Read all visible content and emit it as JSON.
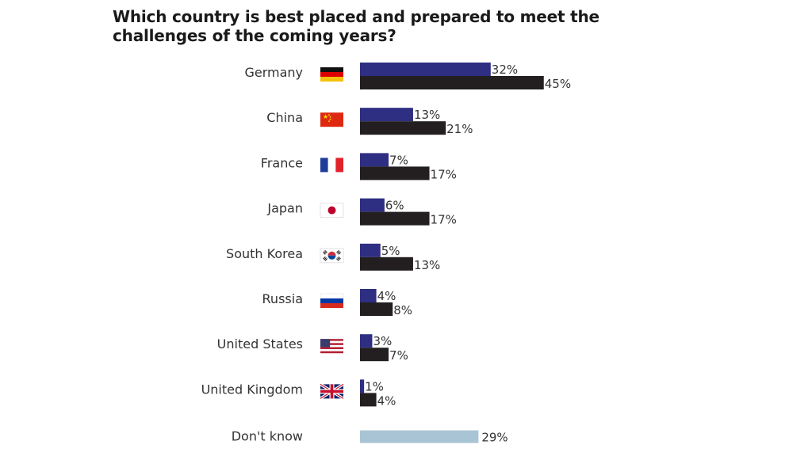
{
  "chart_data": {
    "type": "bar",
    "orientation": "horizontal",
    "title": "Which country is best placed and prepared to meet the challenges of the coming years?",
    "categories": [
      "Germany",
      "China",
      "France",
      "Japan",
      "South Korea",
      "Russia",
      "United States",
      "United Kingdom"
    ],
    "flag_icons": [
      "germany-flag-icon",
      "china-flag-icon",
      "france-flag-icon",
      "japan-flag-icon",
      "south-korea-flag-icon",
      "russia-flag-icon",
      "united-states-flag-icon",
      "united-kingdom-flag-icon"
    ],
    "series": [
      {
        "values": [
          32,
          13,
          7,
          6,
          5,
          4,
          3,
          1
        ],
        "color": "#2e2e82"
      },
      {
        "values": [
          45,
          21,
          17,
          17,
          13,
          8,
          7,
          4
        ],
        "color": "#231f20"
      }
    ],
    "dont_know": {
      "label": "Don't know",
      "value": 29,
      "color": "#a9c4d4"
    },
    "value_suffix": "%",
    "grid": false,
    "legend": "none"
  }
}
